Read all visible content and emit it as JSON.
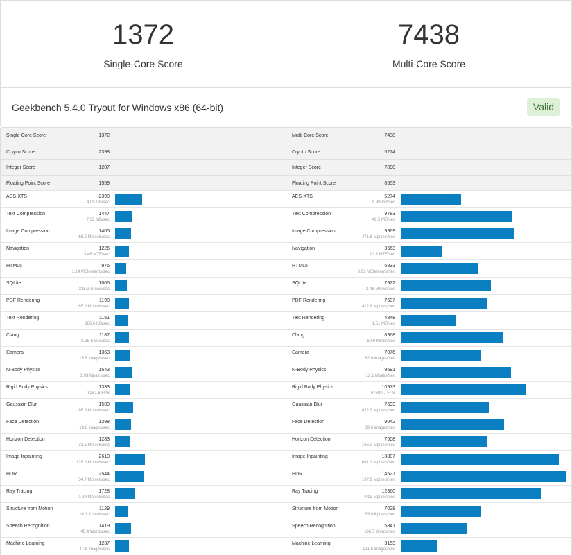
{
  "single": {
    "score": "1372",
    "label": "Single-Core Score"
  },
  "multi": {
    "score": "7438",
    "label": "Multi-Core Score"
  },
  "info": {
    "text": "Geekbench 5.4.0 Tryout for Windows x86 (64-bit)",
    "badge": "Valid"
  },
  "colors": {
    "bar": "#0a7fc1",
    "badge_bg": "#dff0d8",
    "badge_text": "#3c763d"
  },
  "max_bar_value": 14527,
  "left": {
    "summary": [
      {
        "name": "Single-Core Score",
        "value": "1372"
      },
      {
        "name": "Crypto Score",
        "value": "2398"
      },
      {
        "name": "Integer Score",
        "value": "1207"
      },
      {
        "name": "Floating Point Score",
        "value": "1559"
      }
    ],
    "tests": [
      {
        "name": "AES-XTS",
        "score": 2398,
        "detail": "4.09 GB/sec"
      },
      {
        "name": "Text Compression",
        "score": 1447,
        "detail": "7.32 MB/sec"
      },
      {
        "name": "Image Compression",
        "score": 1405,
        "detail": "66.5 Mpixels/sec"
      },
      {
        "name": "Navigation",
        "score": 1226,
        "detail": "3.46 MTE/sec"
      },
      {
        "name": "HTML5",
        "score": 975,
        "detail": "1.14 MElements/sec"
      },
      {
        "name": "SQLite",
        "score": 1006,
        "detail": "315.3 Krows/sec"
      },
      {
        "name": "PDF Rendering",
        "score": 1198,
        "detail": "65.0 Mpixels/sec"
      },
      {
        "name": "Text Rendering",
        "score": 1151,
        "detail": "366.6 KB/sec"
      },
      {
        "name": "Clang",
        "score": 1187,
        "detail": "9.25 Klines/sec"
      },
      {
        "name": "Camera",
        "score": 1363,
        "detail": "15.8 images/sec"
      },
      {
        "name": "N-Body Physics",
        "score": 1543,
        "detail": "1.93 Mpairs/sec"
      },
      {
        "name": "Rigid Body Physics",
        "score": 1333,
        "detail": "8261.6 FPS"
      },
      {
        "name": "Gaussian Blur",
        "score": 1580,
        "detail": "86.9 Mpixels/sec"
      },
      {
        "name": "Face Detection",
        "score": 1398,
        "detail": "10.8 images/sec"
      },
      {
        "name": "Horizon Detection",
        "score": 1283,
        "detail": "31.6 Mpixels/sec"
      },
      {
        "name": "Image Inpainting",
        "score": 2610,
        "detail": "128.0 Mpixels/sec"
      },
      {
        "name": "HDR",
        "score": 2544,
        "detail": "34.7 Mpixels/sec"
      },
      {
        "name": "Ray Tracing",
        "score": 1728,
        "detail": "1.39 Mpixels/sec"
      },
      {
        "name": "Structure from Motion",
        "score": 1129,
        "detail": "10.1 Kpixels/sec"
      },
      {
        "name": "Speech Recognition",
        "score": 1419,
        "detail": "45.4 Words/sec"
      },
      {
        "name": "Machine Learning",
        "score": 1237,
        "detail": "47.8 images/sec"
      }
    ]
  },
  "right": {
    "summary": [
      {
        "name": "Multi-Core Score",
        "value": "7438"
      },
      {
        "name": "Crypto Score",
        "value": "5274"
      },
      {
        "name": "Integer Score",
        "value": "7090"
      },
      {
        "name": "Floating Point Score",
        "value": "8553"
      }
    ],
    "tests": [
      {
        "name": "AES-XTS",
        "score": 5274,
        "detail": "8.99 GB/sec"
      },
      {
        "name": "Text Compression",
        "score": 9783,
        "detail": "49.5 MB/sec"
      },
      {
        "name": "Image Compression",
        "score": 9969,
        "detail": "471.6 Mpixels/sec"
      },
      {
        "name": "Navigation",
        "score": 3663,
        "detail": "10.3 MTE/sec"
      },
      {
        "name": "HTML5",
        "score": 6833,
        "detail": "8.02 MElements/sec"
      },
      {
        "name": "SQLite",
        "score": 7922,
        "detail": "2.48 Mrows/sec"
      },
      {
        "name": "PDF Rendering",
        "score": 7607,
        "detail": "412.8 Mpixels/sec"
      },
      {
        "name": "Text Rendering",
        "score": 4848,
        "detail": "1.51 MB/sec"
      },
      {
        "name": "Clang",
        "score": 8968,
        "detail": "69.9 Klines/sec"
      },
      {
        "name": "Camera",
        "score": 7076,
        "detail": "82.0 images/sec"
      },
      {
        "name": "N-Body Physics",
        "score": 9691,
        "detail": "12.1 Mpairs/sec"
      },
      {
        "name": "Rigid Body Physics",
        "score": 10973,
        "detail": "67680.7 FPS"
      },
      {
        "name": "Gaussian Blur",
        "score": 7693,
        "detail": "422.9 Mpixels/sec"
      },
      {
        "name": "Face Detection",
        "score": 9042,
        "detail": "69.6 images/sec"
      },
      {
        "name": "Horizon Detection",
        "score": 7508,
        "detail": "185.0 Mpixels/sec"
      },
      {
        "name": "Image Inpainting",
        "score": 13887,
        "detail": "681.2 Mpixels/sec"
      },
      {
        "name": "HDR",
        "score": 14527,
        "detail": "197.9 Mpixels/sec"
      },
      {
        "name": "Ray Tracing",
        "score": 12360,
        "detail": "9.93 Mpixels/sec"
      },
      {
        "name": "Structure from Motion",
        "score": 7028,
        "detail": "63.0 Kpixels/sec"
      },
      {
        "name": "Speech Recognition",
        "score": 5841,
        "detail": "186.7 Words/sec"
      },
      {
        "name": "Machine Learning",
        "score": 3153,
        "detail": "121.8 images/sec"
      }
    ]
  }
}
